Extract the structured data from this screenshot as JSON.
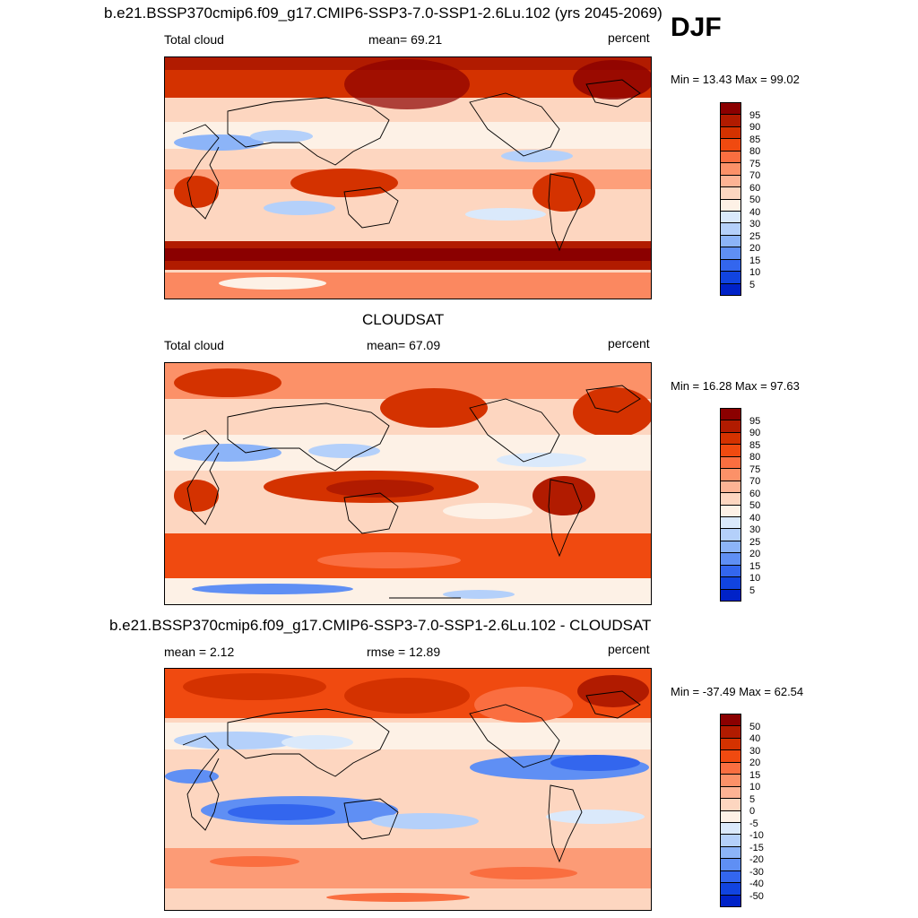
{
  "season": "DJF",
  "units": "percent",
  "panels": [
    {
      "title": "b.e21.BSSP370cmip6.f09_g17.CMIP6-SSP3-7.0-SSP1-2.6Lu.102 (yrs 2045-2069)",
      "left_label": "Total cloud",
      "center_label": "mean=  69.21",
      "right_label": "percent",
      "minmax": "Min =  13.43 Max =  99.02",
      "colorbar": {
        "ticks": [
          "95",
          "90",
          "85",
          "80",
          "75",
          "70",
          "60",
          "50",
          "40",
          "30",
          "25",
          "20",
          "15",
          "10",
          "5"
        ],
        "colors": [
          "#8b0000",
          "#b11b00",
          "#d43200",
          "#f04a10",
          "#fa6e40",
          "#fc9168",
          "#fdb394",
          "#fdd6c0",
          "#fdf1e6",
          "#dae9fb",
          "#b4d0fa",
          "#8cb4f8",
          "#5f8ff4",
          "#3366ee",
          "#1144e0",
          "#0022c8"
        ]
      }
    },
    {
      "title": "CLOUDSAT",
      "left_label": "Total cloud",
      "center_label": "mean=  67.09",
      "right_label": "percent",
      "minmax": "Min =  16.28 Max =  97.63",
      "colorbar": {
        "ticks": [
          "95",
          "90",
          "85",
          "80",
          "75",
          "70",
          "60",
          "50",
          "40",
          "30",
          "25",
          "20",
          "15",
          "10",
          "5"
        ],
        "colors": [
          "#8b0000",
          "#b11b00",
          "#d43200",
          "#f04a10",
          "#fa6e40",
          "#fc9168",
          "#fdb394",
          "#fdd6c0",
          "#fdf1e6",
          "#dae9fb",
          "#b4d0fa",
          "#8cb4f8",
          "#5f8ff4",
          "#3366ee",
          "#1144e0",
          "#0022c8"
        ]
      }
    },
    {
      "title": "b.e21.BSSP370cmip6.f09_g17.CMIP6-SSP3-7.0-SSP1-2.6Lu.102 - CLOUDSAT",
      "left_label": "mean =   2.12",
      "center_label": "rmse =  12.89",
      "right_label": "percent",
      "minmax": "Min = -37.49 Max =  62.54",
      "colorbar": {
        "ticks": [
          "50",
          "40",
          "30",
          "20",
          "15",
          "10",
          "5",
          "0",
          "-5",
          "-10",
          "-15",
          "-20",
          "-30",
          "-40",
          "-50"
        ],
        "colors": [
          "#8b0000",
          "#b11b00",
          "#d43200",
          "#f04a10",
          "#fa6e40",
          "#fc9168",
          "#fdb394",
          "#fdd6c0",
          "#fdf1e6",
          "#dae9fb",
          "#b4d0fa",
          "#8cb4f8",
          "#5f8ff4",
          "#3366ee",
          "#1144e0",
          "#0022c8"
        ]
      }
    }
  ],
  "chart_data": [
    {
      "type": "heatmap",
      "title": "b.e21.BSSP370cmip6.f09_g17.CMIP6-SSP3-7.0-SSP1-2.6Lu.102 (yrs 2045-2069)",
      "variable": "Total cloud",
      "units": "percent",
      "mean": 69.21,
      "min": 13.43,
      "max": 99.02,
      "levels": [
        5,
        10,
        15,
        20,
        25,
        30,
        40,
        50,
        60,
        70,
        75,
        80,
        85,
        90,
        95
      ]
    },
    {
      "type": "heatmap",
      "title": "CLOUDSAT",
      "variable": "Total cloud",
      "units": "percent",
      "mean": 67.09,
      "min": 16.28,
      "max": 97.63,
      "levels": [
        5,
        10,
        15,
        20,
        25,
        30,
        40,
        50,
        60,
        70,
        75,
        80,
        85,
        90,
        95
      ]
    },
    {
      "type": "heatmap",
      "title": "b.e21.BSSP370cmip6.f09_g17.CMIP6-SSP3-7.0-SSP1-2.6Lu.102 - CLOUDSAT",
      "units": "percent",
      "mean": 2.12,
      "rmse": 12.89,
      "min": -37.49,
      "max": 62.54,
      "levels": [
        -50,
        -40,
        -30,
        -20,
        -15,
        -10,
        -5,
        0,
        5,
        10,
        15,
        20,
        30,
        40,
        50
      ]
    }
  ]
}
